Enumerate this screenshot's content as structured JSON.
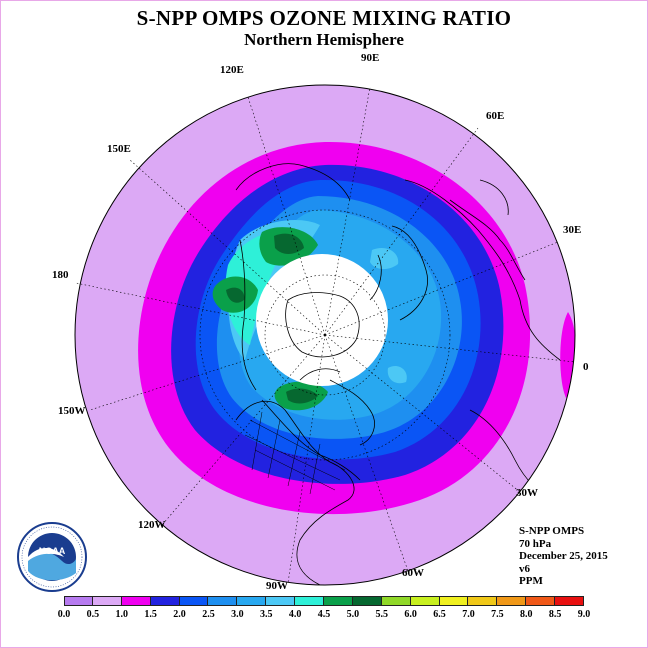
{
  "title": "S-NPP OMPS OZONE MIXING RATIO",
  "subtitle": "Northern Hemisphere",
  "longitude_labels": [
    "90E",
    "60E",
    "30E",
    "0",
    "30W",
    "60W",
    "90W",
    "120W",
    "150W",
    "180",
    "150E",
    "120E"
  ],
  "info": {
    "instrument": "S-NPP OMPS",
    "level": "70 hPa",
    "date": "December 25, 2015",
    "version": "v6",
    "units": "PPM"
  },
  "logo": {
    "icon": "noaa-logo-icon",
    "text": "NOAA"
  },
  "colorbar": {
    "ticks": [
      "0.0",
      "0.5",
      "1.0",
      "1.5",
      "2.0",
      "2.5",
      "3.0",
      "3.5",
      "4.0",
      "4.5",
      "5.0",
      "5.5",
      "6.0",
      "6.5",
      "7.0",
      "7.5",
      "8.0",
      "8.5",
      "9.0"
    ],
    "colors": [
      "#b77bf0",
      "#dca9f5",
      "#f000f0",
      "#2222e0",
      "#0a55f5",
      "#1e8ff0",
      "#28a8f0",
      "#4cc8f5",
      "#2ef0d8",
      "#0aa04a",
      "#066830",
      "#90d828",
      "#c8f020",
      "#f0f020",
      "#f0c818",
      "#f09818",
      "#f05818",
      "#e81010",
      "#7a4a2e"
    ]
  }
}
